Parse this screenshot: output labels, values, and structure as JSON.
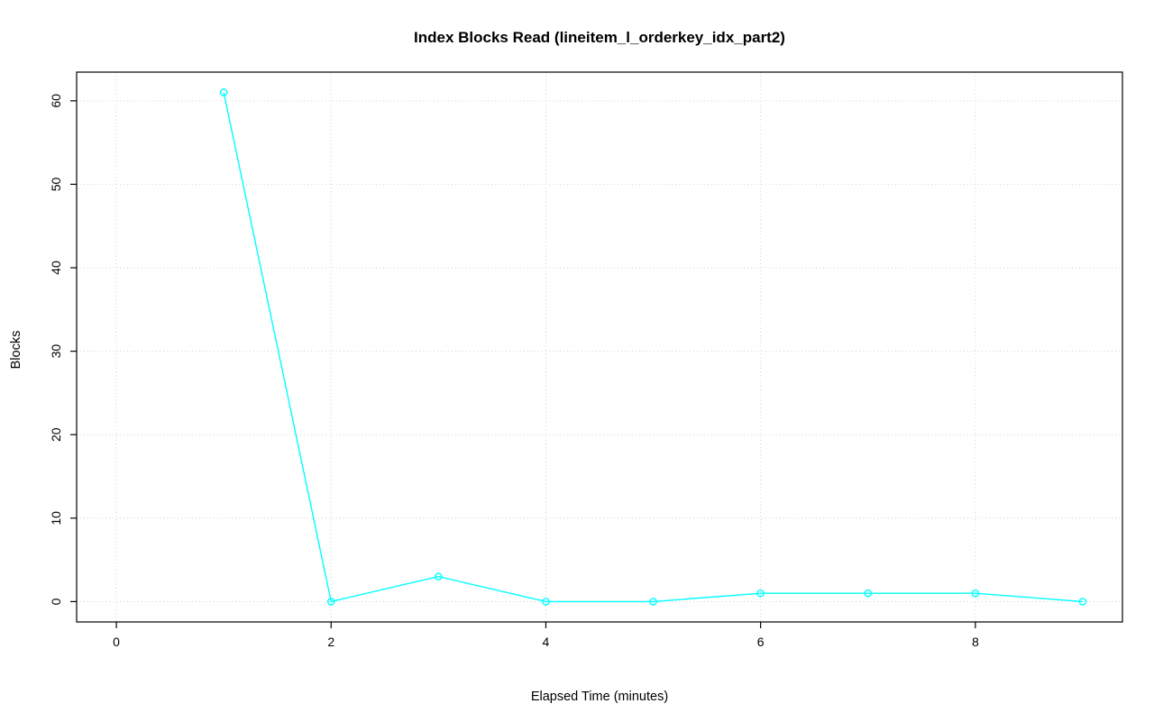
{
  "chart_data": {
    "type": "line",
    "title": "Index Blocks Read (lineitem_l_orderkey_idx_part2)",
    "xlabel": "Elapsed Time (minutes)",
    "ylabel": "Blocks",
    "x": [
      1,
      2,
      3,
      4,
      5,
      6,
      7,
      8,
      9
    ],
    "y": [
      61,
      0,
      3,
      0,
      0,
      1,
      1,
      1,
      0
    ],
    "x_ticks": [
      0,
      2,
      4,
      6,
      8
    ],
    "y_ticks": [
      0,
      10,
      20,
      30,
      40,
      50,
      60
    ],
    "xlim": [
      -0.37,
      9.37
    ],
    "ylim": [
      -2.44,
      63.44
    ],
    "grid": true,
    "legend_position": "none",
    "line_color": "#00ffff",
    "marker": "open-circle",
    "grid_color": "#d3d3d3",
    "axis_color": "#000000",
    "background_color": "#ffffff"
  }
}
